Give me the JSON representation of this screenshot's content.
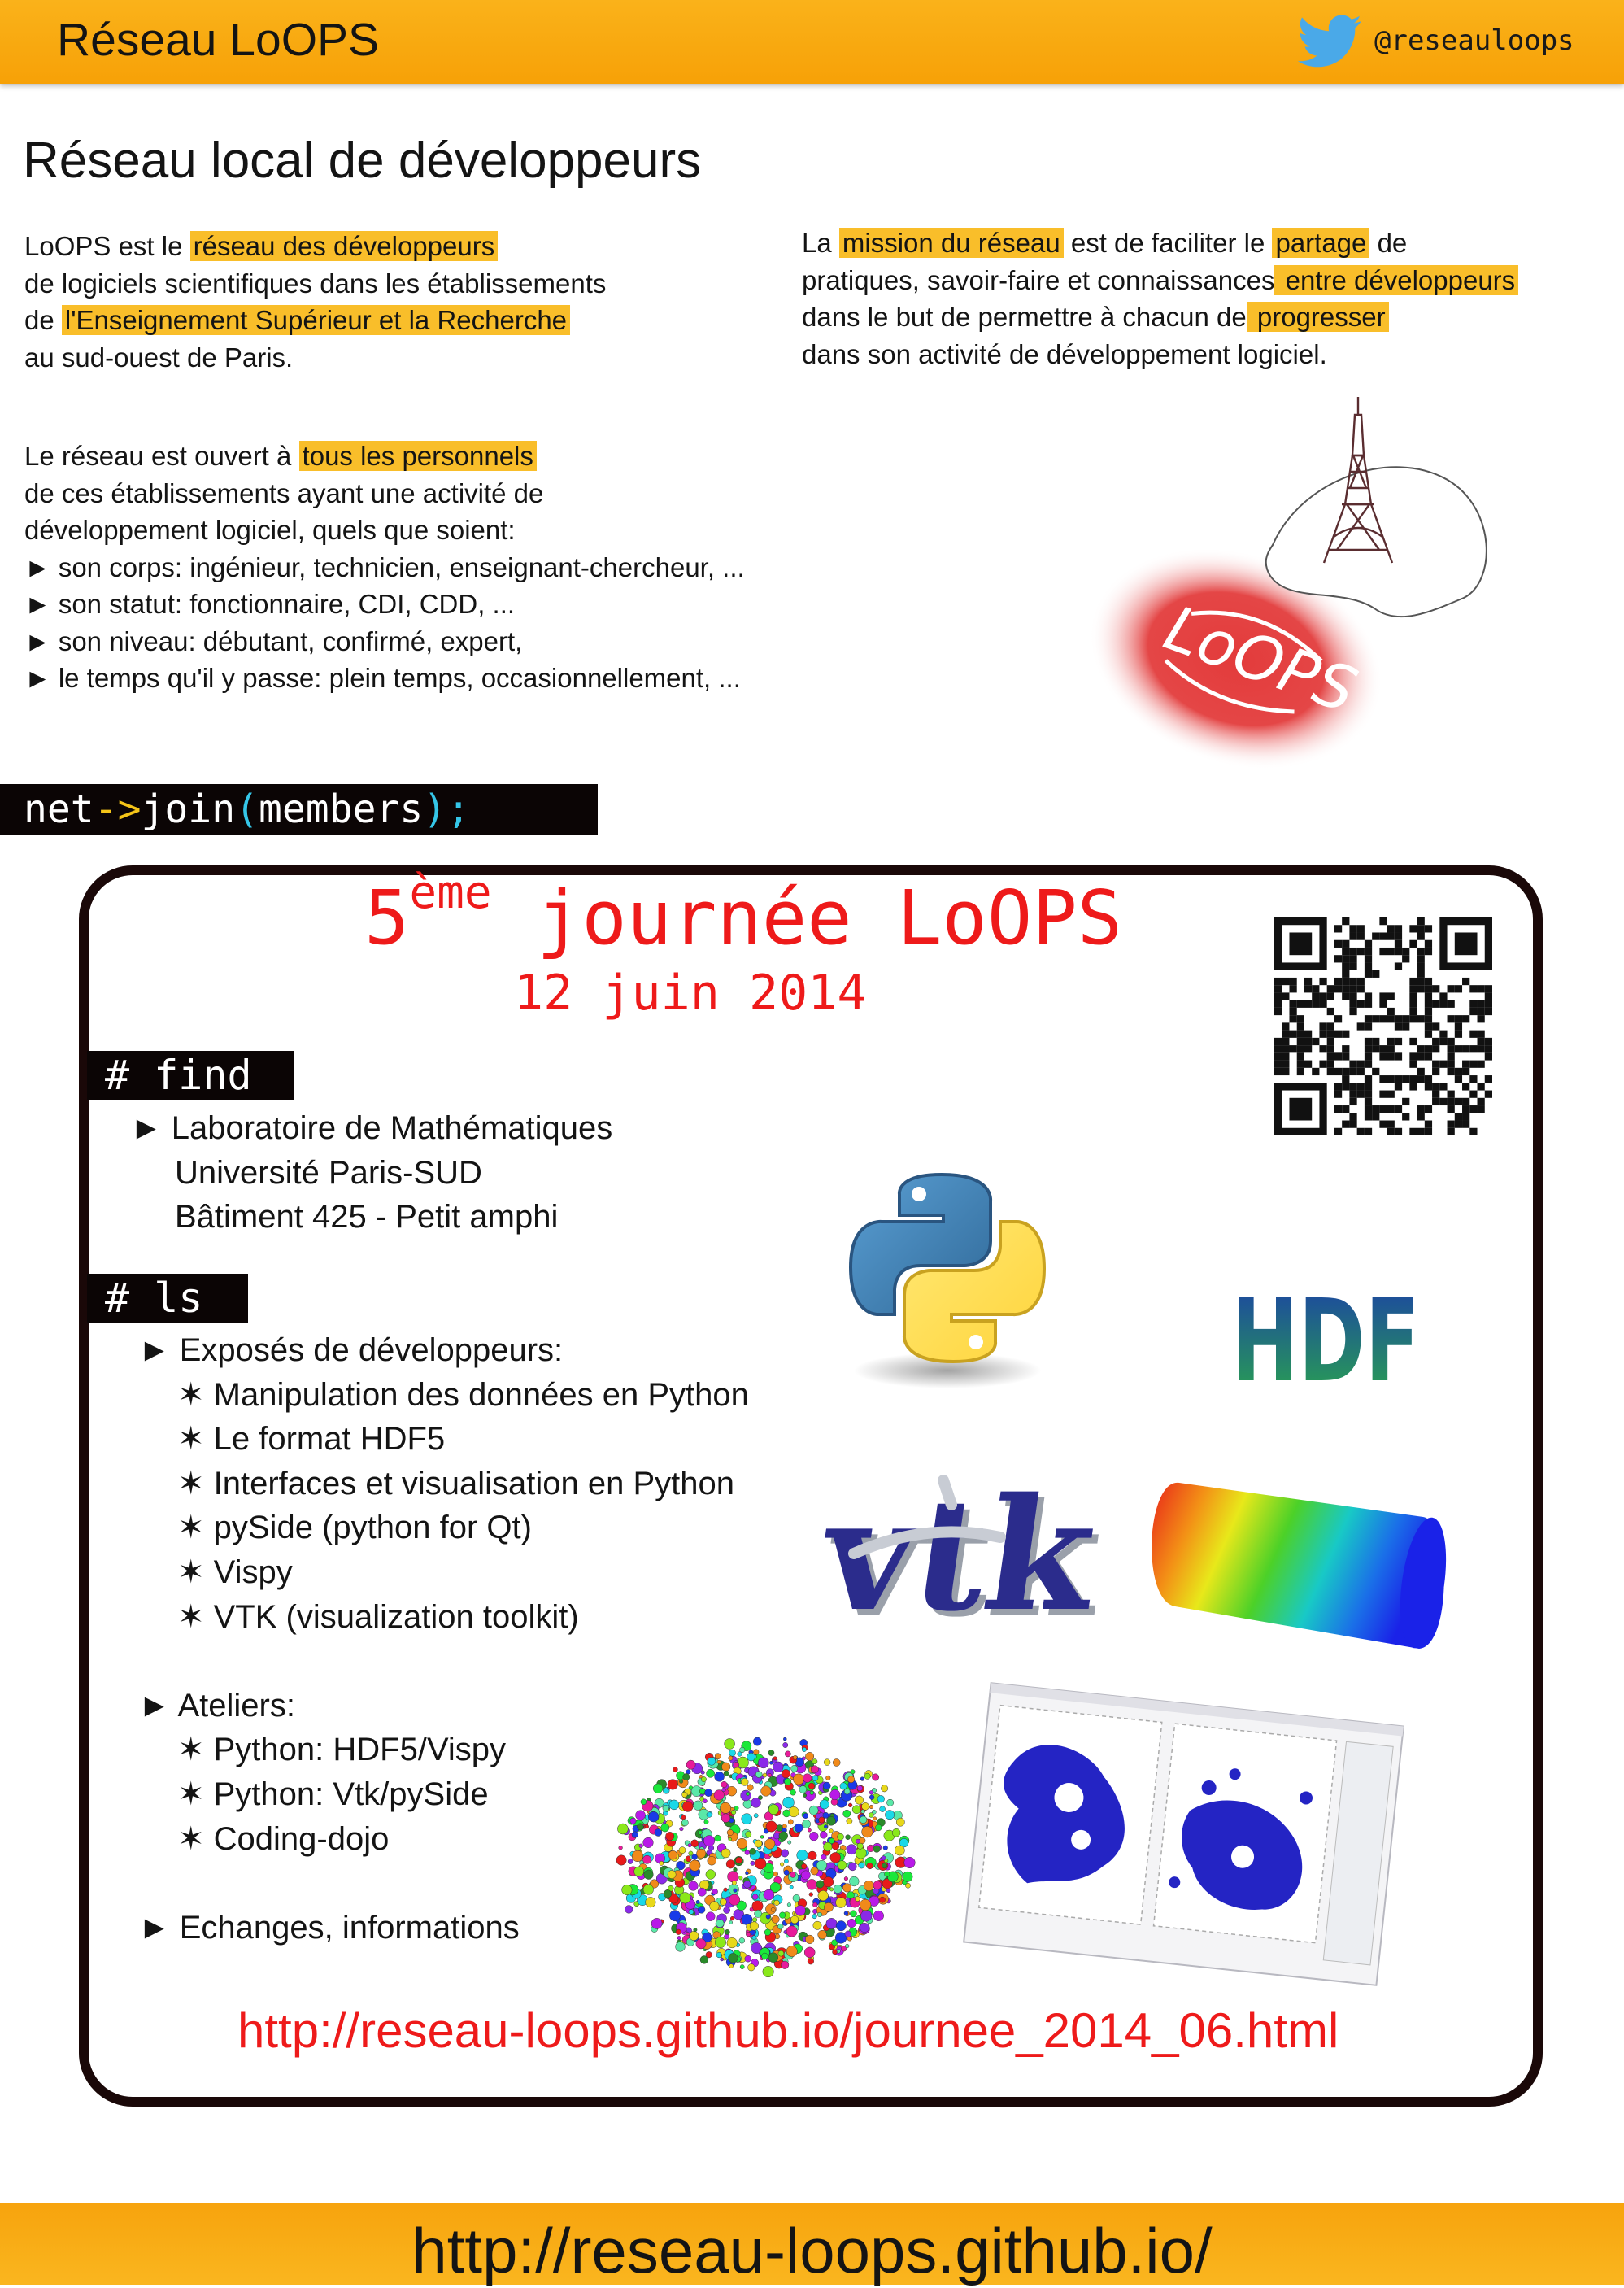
{
  "header": {
    "title": "Réseau LoOPS",
    "twitter_handle": "@reseauloops",
    "bg_color": "#f9ac12"
  },
  "page_heading": "Réseau local de développeurs",
  "intro": {
    "p1_pre": "LoOPS est le ",
    "p1_hl": "réseau des développeurs",
    "p2": "de logiciels scientifiques dans les établissements",
    "p3_pre": "de ",
    "p3_hl": "l'Enseignement Supérieur et la Recherche",
    "p4": "au sud-ouest de Paris."
  },
  "mission": {
    "l1_pre": "La ",
    "l1_hl1": "mission du réseau",
    "l1_mid": " est de faciliter le ",
    "l1_hl2": "partage",
    "l1_post": " de",
    "l2_pre": "pratiques, savoir-faire et connaissances",
    "l2_hl": " entre développeurs",
    "l3_pre": "dans le but de permettre à chacun de",
    "l3_hl": " progresser",
    "l4": "dans son activité de développement logiciel."
  },
  "open": {
    "l1_pre": "Le réseau est ouvert à ",
    "l1_hl": "tous les personnels",
    "l2": "de ces établissements ayant une activité de",
    "l3": "développement logiciel, quels que soient:",
    "bullets": [
      "► son corps: ingénieur, technicien, enseignant-chercheur, ...",
      "► son statut: fonctionnaire, CDI, CDD, ...",
      "► son niveau: débutant, confirmé, expert,",
      "► le temps qu'il y passe: plein temps, occasionnellement, ..."
    ]
  },
  "logo_text": "LoOPS",
  "code_banner": {
    "net": "net",
    "arrow": "->",
    "join": "join",
    "lparen": "(",
    "members": "members",
    "rparen_semi": ");"
  },
  "event": {
    "title_num": "5",
    "title_sup": "ème",
    "title_rest": " journée LoOPS",
    "date": "12 juin 2014",
    "find_tag": "# find",
    "find_items": [
      "► Laboratoire de Mathématiques",
      "Université Paris-SUD",
      "Bâtiment 425 - Petit amphi"
    ],
    "ls_tag": "# ls",
    "ls_header1": "► Exposés de développeurs:",
    "talks": [
      "✶ Manipulation des données en Python",
      "✶ Le format HDF5",
      "✶ Interfaces et visualisation en Python",
      "✶ pySide (python for Qt)",
      "✶ Vispy",
      "✶ VTK (visualization toolkit)"
    ],
    "ls_header2": "► Ateliers:",
    "workshops": [
      "✶ Python: HDF5/Vispy",
      "✶ Python: Vtk/pySide",
      "✶ Coding-dojo"
    ],
    "ls_header3": "► Echanges, informations",
    "url": "http://reseau-loops.github.io/journee_2014_06.html",
    "accent_color": "#ee1a1a"
  },
  "logos": {
    "hdf": "HDF",
    "vtk": "vtk"
  },
  "footer": {
    "url": "http://reseau-loops.github.io/"
  }
}
